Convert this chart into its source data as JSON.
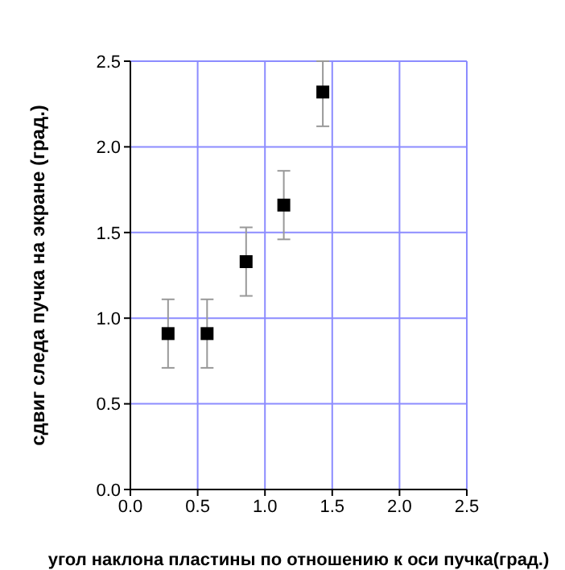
{
  "chart_data": {
    "type": "scatter",
    "xlabel": "угол наклона пластины по отношению к оси пучка(град.)",
    "ylabel": "сдвиг следа пучка на экране (град.)",
    "x": [
      0.28,
      0.57,
      0.86,
      1.14,
      1.43
    ],
    "series": [
      {
        "color": "#000000",
        "values": [
          0.91,
          0.91,
          1.33,
          1.66,
          2.32
        ],
        "errors": [
          0.2,
          0.2,
          0.2,
          0.2,
          [
            2.12,
            2.5
          ]
        ]
      }
    ],
    "xlim": [
      0,
      2.5
    ],
    "xticks": [
      {
        "value": 0,
        "label": "0.0"
      },
      0.5,
      {
        "value": 1,
        "label": "1.0"
      },
      1.5,
      {
        "value": 2,
        "label": "2.0"
      },
      2.5
    ],
    "ylim": [
      0,
      2.5
    ],
    "yticks": [
      {
        "value": 0,
        "label": "0.0"
      },
      0.5,
      {
        "value": 1,
        "label": "1.0"
      },
      1.5,
      {
        "value": 2,
        "label": "2.0"
      },
      2.5
    ],
    "grid": true,
    "marker": "square",
    "legend": false
  }
}
